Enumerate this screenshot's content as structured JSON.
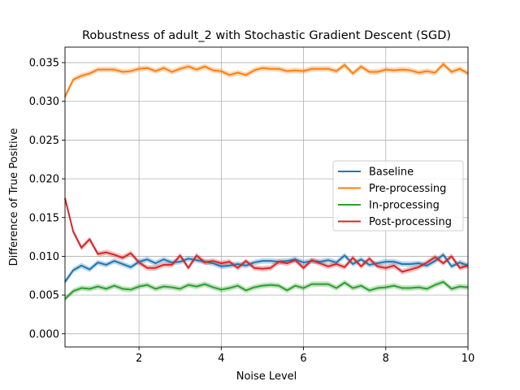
{
  "chart_data": {
    "type": "line",
    "title": "Robustness of adult_2 with Stochastic Gradient Descent (SGD)",
    "xlabel": "Noise Level",
    "ylabel": "Difference of True Positive",
    "xlim": [
      0.2,
      10
    ],
    "ylim": [
      -0.0017,
      0.037
    ],
    "xticks": [
      2,
      4,
      6,
      8,
      10
    ],
    "xtick_labels": [
      "2",
      "4",
      "6",
      "8",
      "10"
    ],
    "yticks": [
      0.0,
      0.005,
      0.01,
      0.015,
      0.02,
      0.025,
      0.03,
      0.035
    ],
    "ytick_labels": [
      "0.000",
      "0.005",
      "0.010",
      "0.015",
      "0.020",
      "0.025",
      "0.030",
      "0.035"
    ],
    "grid": true,
    "legend_position": "center-right",
    "x": [
      0.2,
      0.4,
      0.6,
      0.8,
      1.0,
      1.2,
      1.4,
      1.6,
      1.8,
      2.0,
      2.2,
      2.4,
      2.6,
      2.8,
      3.0,
      3.2,
      3.4,
      3.6,
      3.8,
      4.0,
      4.2,
      4.4,
      4.6,
      4.8,
      5.0,
      5.2,
      5.4,
      5.6,
      5.8,
      6.0,
      6.2,
      6.4,
      6.6,
      6.8,
      7.0,
      7.2,
      7.4,
      7.6,
      7.8,
      8.0,
      8.2,
      8.4,
      8.6,
      8.8,
      9.0,
      9.2,
      9.4,
      9.6,
      9.8,
      10.0
    ],
    "series": [
      {
        "name": "Baseline",
        "color": "#1f77b4",
        "values": [
          0.0067,
          0.0082,
          0.0088,
          0.0083,
          0.0092,
          0.0089,
          0.0094,
          0.009,
          0.0086,
          0.0093,
          0.0096,
          0.0091,
          0.0096,
          0.0092,
          0.0093,
          0.0097,
          0.0095,
          0.0093,
          0.0091,
          0.0087,
          0.0088,
          0.009,
          0.0088,
          0.0092,
          0.0094,
          0.0094,
          0.0093,
          0.0094,
          0.0096,
          0.0092,
          0.0094,
          0.0093,
          0.0095,
          0.0092,
          0.0101,
          0.009,
          0.0096,
          0.0089,
          0.0091,
          0.0093,
          0.0093,
          0.009,
          0.009,
          0.0091,
          0.0088,
          0.0094,
          0.0102,
          0.0087,
          0.0092,
          0.0088
        ]
      },
      {
        "name": "Pre-processing",
        "color": "#ff7f0e",
        "values": [
          0.0306,
          0.0328,
          0.0333,
          0.0336,
          0.0341,
          0.0341,
          0.0341,
          0.0338,
          0.0339,
          0.0342,
          0.0343,
          0.0339,
          0.0343,
          0.0338,
          0.0342,
          0.0345,
          0.0341,
          0.0345,
          0.034,
          0.0339,
          0.0334,
          0.0337,
          0.0334,
          0.034,
          0.0343,
          0.0342,
          0.0342,
          0.0339,
          0.034,
          0.0339,
          0.0342,
          0.0342,
          0.0342,
          0.0339,
          0.0347,
          0.0336,
          0.0345,
          0.0338,
          0.0338,
          0.0341,
          0.034,
          0.0341,
          0.034,
          0.0337,
          0.0339,
          0.0337,
          0.0348,
          0.0338,
          0.0342,
          0.0336
        ]
      },
      {
        "name": "In-processing",
        "color": "#2ca02c",
        "values": [
          0.0045,
          0.0055,
          0.0059,
          0.0058,
          0.0061,
          0.0058,
          0.0062,
          0.0058,
          0.0057,
          0.0061,
          0.0063,
          0.0058,
          0.0061,
          0.006,
          0.0058,
          0.0063,
          0.0061,
          0.0064,
          0.006,
          0.0057,
          0.0059,
          0.0062,
          0.0056,
          0.006,
          0.0062,
          0.0063,
          0.0062,
          0.0056,
          0.0062,
          0.0059,
          0.0064,
          0.0064,
          0.0064,
          0.0059,
          0.0066,
          0.0059,
          0.0062,
          0.0056,
          0.0059,
          0.006,
          0.0062,
          0.0059,
          0.0059,
          0.006,
          0.0058,
          0.0063,
          0.0067,
          0.0058,
          0.0061,
          0.006
        ]
      },
      {
        "name": "Post-processing",
        "color": "#d62728",
        "values": [
          0.0175,
          0.0132,
          0.0111,
          0.0122,
          0.0103,
          0.0105,
          0.0102,
          0.0098,
          0.0104,
          0.0092,
          0.0085,
          0.0085,
          0.0089,
          0.0089,
          0.0101,
          0.0085,
          0.0101,
          0.0092,
          0.0094,
          0.0091,
          0.0093,
          0.0085,
          0.0094,
          0.0085,
          0.0084,
          0.0085,
          0.0093,
          0.0091,
          0.0095,
          0.0085,
          0.0095,
          0.0091,
          0.0087,
          0.009,
          0.0086,
          0.0098,
          0.0087,
          0.0097,
          0.0087,
          0.0085,
          0.0088,
          0.008,
          0.0083,
          0.0086,
          0.0092,
          0.0099,
          0.0091,
          0.01,
          0.0085,
          0.0088
        ]
      }
    ]
  }
}
